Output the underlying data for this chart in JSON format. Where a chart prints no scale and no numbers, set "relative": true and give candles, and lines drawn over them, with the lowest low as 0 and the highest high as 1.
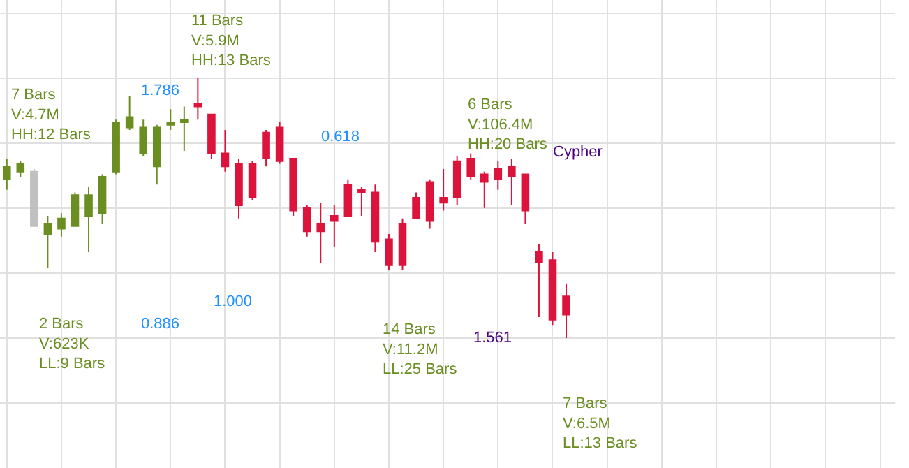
{
  "chart_data": {
    "type": "candlestick",
    "relative": true,
    "grid": true,
    "categories": [
      null,
      null,
      null,
      null,
      null,
      null,
      null,
      null,
      null,
      null,
      null,
      null,
      null,
      null,
      null,
      null,
      null,
      null,
      null,
      null,
      null,
      null,
      null,
      null,
      null,
      null,
      null,
      null,
      null,
      null,
      null,
      null,
      null,
      null,
      null,
      null,
      null,
      null,
      null,
      null,
      null,
      null
    ],
    "ohlc": [
      [
        0.61,
        0.69,
        0.57,
        0.66
      ],
      [
        0.64,
        0.68,
        0.62,
        0.67
      ],
      [
        0.64,
        0.65,
        0.43,
        0.43
      ],
      [
        0.4,
        0.47,
        0.27,
        0.44
      ],
      [
        0.42,
        0.48,
        0.39,
        0.46
      ],
      [
        0.43,
        0.56,
        0.43,
        0.55
      ],
      [
        0.47,
        0.58,
        0.33,
        0.55
      ],
      [
        0.48,
        0.63,
        0.44,
        0.62
      ],
      [
        0.64,
        0.84,
        0.63,
        0.83
      ],
      [
        0.81,
        0.93,
        0.8,
        0.85
      ],
      [
        0.71,
        0.84,
        0.7,
        0.81
      ],
      [
        0.66,
        0.82,
        0.59,
        0.81
      ],
      [
        0.82,
        0.88,
        0.8,
        0.83
      ],
      [
        0.83,
        0.89,
        0.72,
        0.84
      ],
      [
        0.9,
        1.0,
        0.84,
        0.89
      ],
      [
        0.86,
        0.86,
        0.69,
        0.71
      ],
      [
        0.71,
        0.8,
        0.64,
        0.66
      ],
      [
        0.67,
        0.69,
        0.46,
        0.51
      ],
      [
        0.67,
        0.68,
        0.53,
        0.54
      ],
      [
        0.79,
        0.8,
        0.66,
        0.69
      ],
      [
        0.81,
        0.83,
        0.67,
        0.68
      ],
      [
        0.69,
        0.69,
        0.47,
        0.49
      ],
      [
        0.5,
        0.51,
        0.39,
        0.41
      ],
      [
        0.44,
        0.52,
        0.29,
        0.41
      ],
      [
        0.47,
        0.51,
        0.35,
        0.45
      ],
      [
        0.59,
        0.61,
        0.47,
        0.47
      ],
      [
        0.57,
        0.58,
        0.47,
        0.56
      ],
      [
        0.56,
        0.59,
        0.33,
        0.37
      ],
      [
        0.38,
        0.4,
        0.26,
        0.28
      ],
      [
        0.44,
        0.46,
        0.26,
        0.28
      ],
      [
        0.54,
        0.56,
        0.46,
        0.46
      ],
      [
        0.6,
        0.61,
        0.42,
        0.45
      ],
      [
        0.54,
        0.65,
        0.49,
        0.52
      ],
      [
        0.68,
        0.7,
        0.51,
        0.54
      ],
      [
        0.69,
        0.71,
        0.61,
        0.62
      ],
      [
        0.63,
        0.64,
        0.5,
        0.6
      ],
      [
        0.65,
        0.68,
        0.57,
        0.61
      ],
      [
        0.66,
        0.69,
        0.51,
        0.62
      ],
      [
        0.63,
        0.63,
        0.44,
        0.49
      ],
      [
        0.33,
        0.36,
        0.08,
        0.29
      ],
      [
        0.3,
        0.33,
        0.05,
        0.07
      ],
      [
        0.16,
        0.21,
        0.0,
        0.09
      ]
    ],
    "colors": [
      "#6b8e23",
      "#6b8e23",
      "#c0c0c0",
      "#6b8e23",
      "#6b8e23",
      "#6b8e23",
      "#6b8e23",
      "#6b8e23",
      "#6b8e23",
      "#6b8e23",
      "#6b8e23",
      "#6b8e23",
      "#6b8e23",
      "#6b8e23",
      "#dc143c",
      "#dc143c",
      "#dc143c",
      "#dc143c",
      "#dc143c",
      "#dc143c",
      "#dc143c",
      "#dc143c",
      "#dc143c",
      "#dc143c",
      "#dc143c",
      "#dc143c",
      "#dc143c",
      "#dc143c",
      "#dc143c",
      "#dc143c",
      "#dc143c",
      "#dc143c",
      "#dc143c",
      "#dc143c",
      "#dc143c",
      "#dc143c",
      "#dc143c",
      "#dc143c",
      "#dc143c",
      "#dc143c",
      "#dc143c",
      "#dc143c"
    ],
    "annotations": [
      "11 Bars\nV:5.9M\nHH:13 Bars",
      "7 Bars\nV:4.7M\nHH:12 Bars",
      "6 Bars\nV:106.4M\nHH:20 Bars",
      "Cypher",
      "2 Bars\nV:623K\nLL:9 Bars",
      "14 Bars\nV:11.2M\nLL:25 Bars",
      "7 Bars\nV:6.5M\nLL:13 Bars",
      "1.786",
      "0.618",
      "1.000",
      "0.886",
      "1.561"
    ]
  }
}
